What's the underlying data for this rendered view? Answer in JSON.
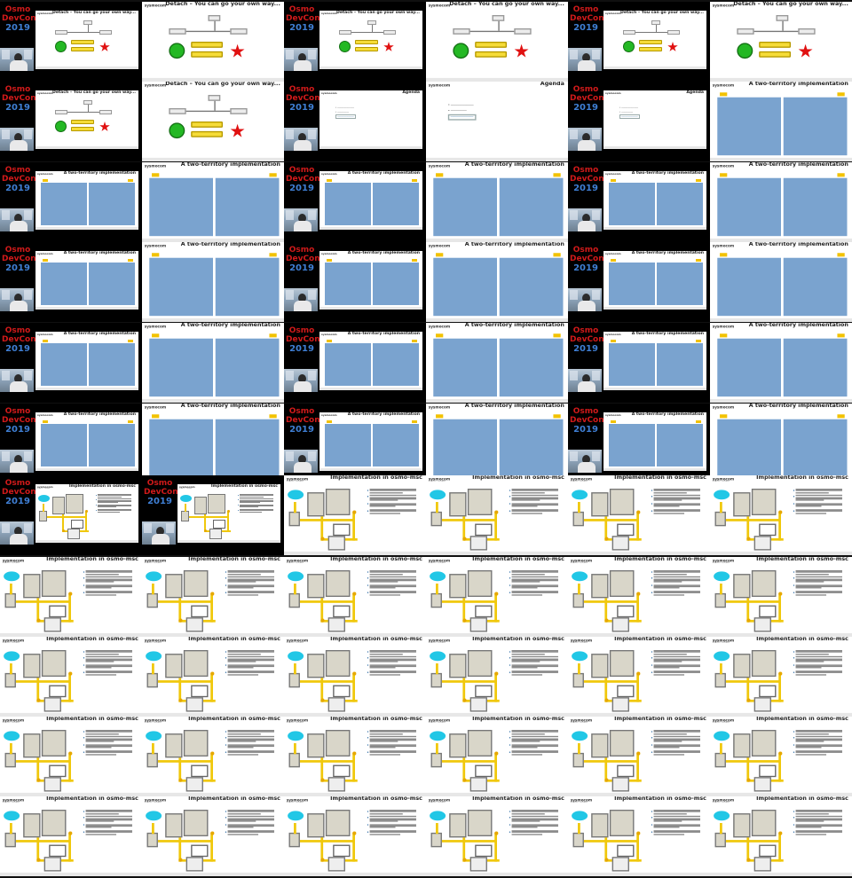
{
  "event_logo": {
    "line1": "Osmo",
    "line2": "DevCon",
    "year": "2019"
  },
  "slides": {
    "detach": {
      "title": "Detach – You can go your own way..."
    },
    "agenda": {
      "title": "Agenda"
    },
    "two_territory": {
      "title": "A two-territory implementation"
    },
    "osmo_msc": {
      "title": "Implementation in osmo-msc"
    }
  },
  "slide_header": {
    "company": "sysmocom",
    "company_sub": "s.f.m.c. GmbH"
  },
  "colors": {
    "background": "#101010",
    "detach_circle": "#24b824",
    "detach_star": "#e01010",
    "detach_note": "#f6dc38",
    "territory_column": "#7aa3cf",
    "territory_tag": "#f2c200",
    "msc_cloud": "#21c7e6",
    "msc_pipe": "#f0c80c"
  },
  "icons": [
    "event-logo-icon",
    "speaker-camera-icon",
    "green-circle-icon",
    "red-star-icon",
    "cloud-icon",
    "rack-icon"
  ],
  "grid": {
    "columns": 6,
    "rows": 11,
    "frames": [
      {
        "view": "talk",
        "slide": "detach"
      },
      {
        "view": "screen",
        "slide": "detach"
      },
      {
        "view": "talk",
        "slide": "detach"
      },
      {
        "view": "screen",
        "slide": "detach"
      },
      {
        "view": "talk",
        "slide": "detach"
      },
      {
        "view": "screen",
        "slide": "detach"
      },
      {
        "view": "talk",
        "slide": "detach"
      },
      {
        "view": "screen",
        "slide": "detach"
      },
      {
        "view": "talk",
        "slide": "agenda"
      },
      {
        "view": "screen",
        "slide": "agenda"
      },
      {
        "view": "talk",
        "slide": "agenda"
      },
      {
        "view": "screen",
        "slide": "two_territory"
      },
      {
        "view": "talk",
        "slide": "two_territory"
      },
      {
        "view": "screen",
        "slide": "two_territory"
      },
      {
        "view": "talk",
        "slide": "two_territory"
      },
      {
        "view": "screen",
        "slide": "two_territory"
      },
      {
        "view": "talk",
        "slide": "two_territory"
      },
      {
        "view": "screen",
        "slide": "two_territory"
      },
      {
        "view": "talk",
        "slide": "two_territory"
      },
      {
        "view": "screen",
        "slide": "two_territory"
      },
      {
        "view": "talk",
        "slide": "two_territory"
      },
      {
        "view": "screen",
        "slide": "two_territory"
      },
      {
        "view": "talk",
        "slide": "two_territory"
      },
      {
        "view": "screen",
        "slide": "two_territory"
      },
      {
        "view": "talk",
        "slide": "two_territory"
      },
      {
        "view": "screen",
        "slide": "two_territory"
      },
      {
        "view": "talk",
        "slide": "two_territory"
      },
      {
        "view": "screen",
        "slide": "two_territory"
      },
      {
        "view": "talk",
        "slide": "two_territory"
      },
      {
        "view": "screen",
        "slide": "two_territory"
      },
      {
        "view": "talk",
        "slide": "two_territory"
      },
      {
        "view": "screen",
        "slide": "two_territory"
      },
      {
        "view": "talk",
        "slide": "two_territory"
      },
      {
        "view": "screen",
        "slide": "two_territory"
      },
      {
        "view": "talk",
        "slide": "two_territory"
      },
      {
        "view": "screen",
        "slide": "two_territory"
      },
      {
        "view": "talk",
        "slide": "osmo_msc"
      },
      {
        "view": "talk",
        "slide": "osmo_msc"
      },
      {
        "view": "screen",
        "slide": "osmo_msc"
      },
      {
        "view": "screen",
        "slide": "osmo_msc"
      },
      {
        "view": "screen",
        "slide": "osmo_msc"
      },
      {
        "view": "screen",
        "slide": "osmo_msc"
      },
      {
        "view": "screen",
        "slide": "osmo_msc"
      },
      {
        "view": "screen",
        "slide": "osmo_msc"
      },
      {
        "view": "screen",
        "slide": "osmo_msc"
      },
      {
        "view": "screen",
        "slide": "osmo_msc"
      },
      {
        "view": "screen",
        "slide": "osmo_msc"
      },
      {
        "view": "screen",
        "slide": "osmo_msc"
      },
      {
        "view": "screen",
        "slide": "osmo_msc"
      },
      {
        "view": "screen",
        "slide": "osmo_msc"
      },
      {
        "view": "screen",
        "slide": "osmo_msc"
      },
      {
        "view": "screen",
        "slide": "osmo_msc"
      },
      {
        "view": "screen",
        "slide": "osmo_msc"
      },
      {
        "view": "screen",
        "slide": "osmo_msc"
      },
      {
        "view": "screen",
        "slide": "osmo_msc"
      },
      {
        "view": "screen",
        "slide": "osmo_msc"
      },
      {
        "view": "screen",
        "slide": "osmo_msc"
      },
      {
        "view": "screen",
        "slide": "osmo_msc"
      },
      {
        "view": "screen",
        "slide": "osmo_msc"
      },
      {
        "view": "screen",
        "slide": "osmo_msc"
      },
      {
        "view": "screen",
        "slide": "osmo_msc"
      },
      {
        "view": "screen",
        "slide": "osmo_msc"
      },
      {
        "view": "screen",
        "slide": "osmo_msc"
      },
      {
        "view": "screen",
        "slide": "osmo_msc"
      },
      {
        "view": "screen",
        "slide": "osmo_msc"
      },
      {
        "view": "screen",
        "slide": "osmo_msc"
      }
    ]
  }
}
